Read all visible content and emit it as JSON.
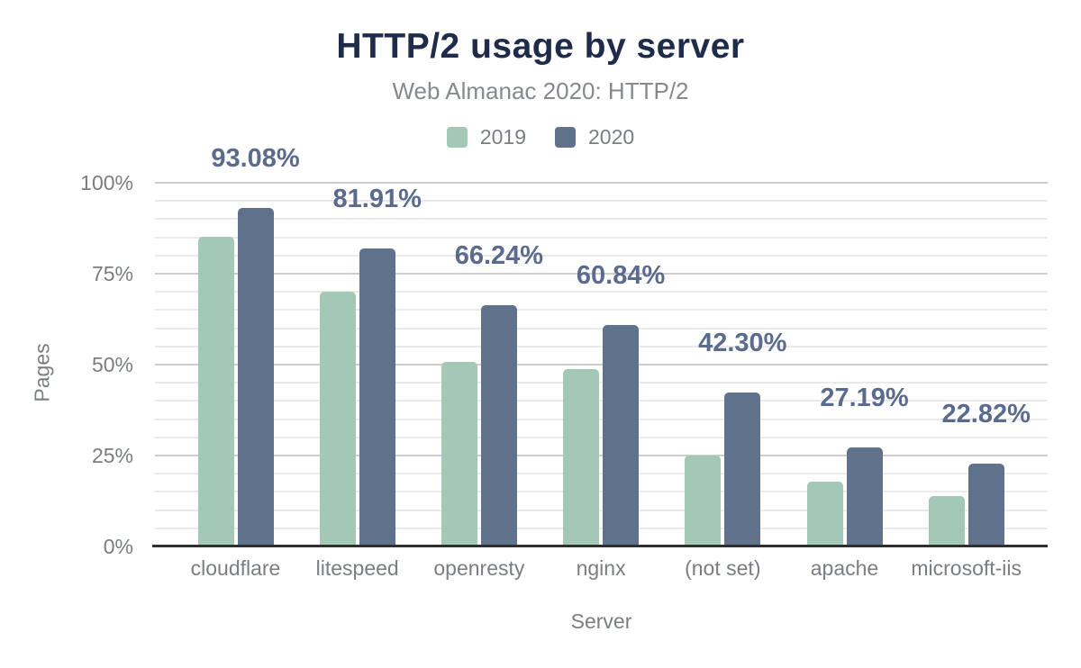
{
  "chart_data": {
    "type": "bar",
    "title": "HTTP/2 usage by server",
    "subtitle": "Web Almanac 2020: HTTP/2",
    "xlabel": "Server",
    "ylabel": "Pages",
    "categories": [
      "cloudflare",
      "litespeed",
      "openresty",
      "nginx",
      "(not set)",
      "apache",
      "microsoft-iis"
    ],
    "series": [
      {
        "name": "2019",
        "color": "#a4c8b6",
        "values": [
          85.1,
          70.0,
          50.7,
          48.8,
          25.0,
          17.8,
          13.9
        ]
      },
      {
        "name": "2020",
        "color": "#60718c",
        "values": [
          93.08,
          81.91,
          66.24,
          60.84,
          42.3,
          27.19,
          22.82
        ],
        "labels": [
          "93.08%",
          "81.91%",
          "66.24%",
          "60.84%",
          "42.30%",
          "27.19%",
          "22.82%"
        ]
      }
    ],
    "ylim": [
      0,
      100
    ],
    "yticks": [
      {
        "value": 0,
        "label": "0%"
      },
      {
        "value": 25,
        "label": "25%"
      },
      {
        "value": 50,
        "label": "50%"
      },
      {
        "value": 75,
        "label": "75%"
      },
      {
        "value": 100,
        "label": "100%"
      }
    ],
    "grid": {
      "minor_step": 5,
      "major_step": 25,
      "minor_color": "#eaeaea",
      "major_color": "#cdcdcd",
      "baseline_color": "#2f2f2f"
    },
    "legend_position": "top"
  },
  "colors": {
    "background": "#ffffff",
    "title": "#1e2b4a",
    "subtitle": "#868a8e",
    "axis_text": "#7a7d81",
    "data_label": "#5a6b8e",
    "series_2019": "#a4c8b6",
    "series_2020": "#60718c"
  }
}
